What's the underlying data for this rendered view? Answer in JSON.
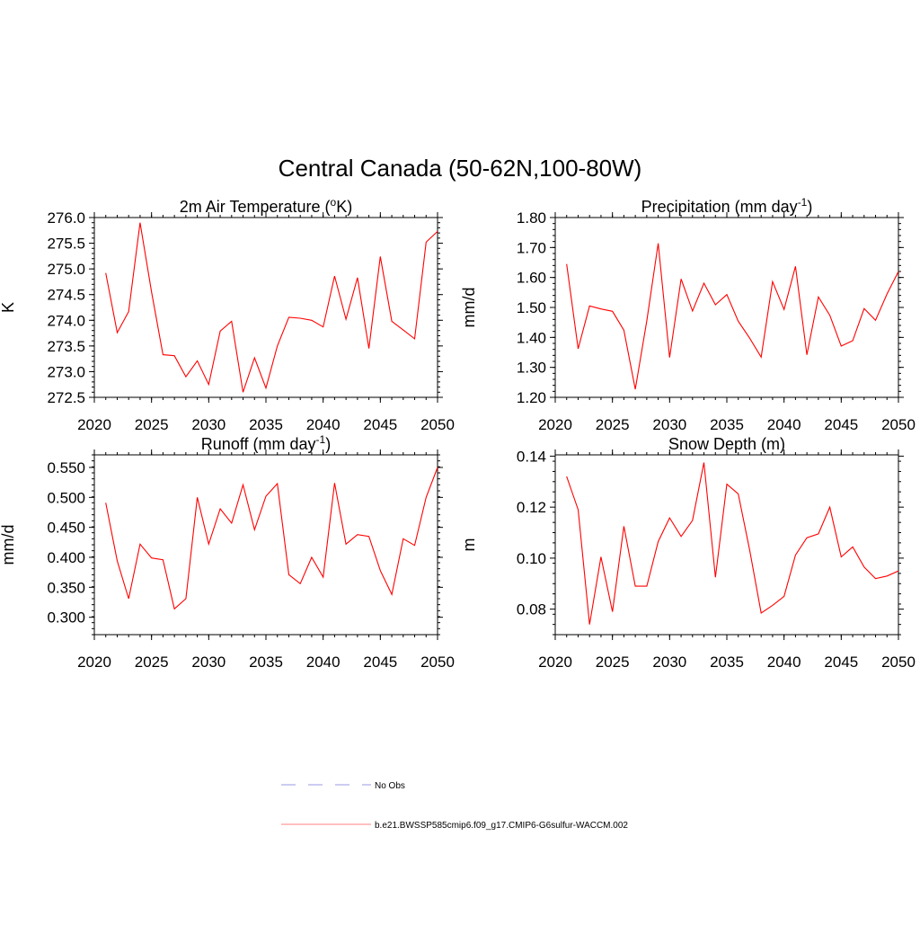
{
  "page_title": "Central Canada (50-62N,100-80W)",
  "legend": {
    "entries": [
      {
        "label": "No Obs",
        "color": "#9a9ae6",
        "dash": true
      },
      {
        "label": "b.e21.BWSSP585cmip6.f09_g17.CMIP6-G6sulfur-WACCM.002",
        "color": "#ff8080",
        "dash": false
      }
    ]
  },
  "chart_data": [
    {
      "type": "line",
      "title": "2m Air Temperature (",
      "title_sup": "o",
      "title_after": "K)",
      "ylabel": "K",
      "xlim": [
        2020,
        2050
      ],
      "ylim": [
        272.5,
        276.0
      ],
      "xticks": [
        2020,
        2025,
        2030,
        2035,
        2040,
        2045,
        2050
      ],
      "yticks": [
        "272.5",
        "273.0",
        "273.5",
        "274.0",
        "274.5",
        "275.0",
        "275.5",
        "276.0"
      ],
      "ytick_values": [
        272.5,
        273.0,
        273.5,
        274.0,
        274.5,
        275.0,
        275.5,
        276.0
      ],
      "color": "#ff0000",
      "x": [
        2021,
        2022,
        2023,
        2024,
        2025,
        2026,
        2027,
        2028,
        2029,
        2030,
        2031,
        2032,
        2033,
        2034,
        2035,
        2036,
        2037,
        2038,
        2039,
        2040,
        2041,
        2042,
        2043,
        2044,
        2045,
        2046,
        2047,
        2048,
        2049,
        2050
      ],
      "y": [
        274.92,
        273.76,
        274.17,
        275.9,
        274.55,
        273.33,
        273.31,
        272.9,
        273.21,
        272.75,
        273.79,
        273.98,
        272.6,
        273.27,
        272.68,
        273.5,
        274.06,
        274.04,
        274.0,
        273.87,
        274.86,
        274.02,
        274.83,
        273.45,
        275.24,
        273.98,
        273.81,
        273.64,
        275.52,
        275.73
      ]
    },
    {
      "type": "line",
      "title": "Precipitation (mm day",
      "title_sup": "-1",
      "title_after": ")",
      "ylabel": "mm/d",
      "xlim": [
        2020,
        2050
      ],
      "ylim": [
        1.2,
        1.8
      ],
      "xticks": [
        2020,
        2025,
        2030,
        2035,
        2040,
        2045,
        2050
      ],
      "yticks": [
        "1.20",
        "1.30",
        "1.40",
        "1.50",
        "1.60",
        "1.70",
        "1.80"
      ],
      "ytick_values": [
        1.2,
        1.3,
        1.4,
        1.5,
        1.6,
        1.7,
        1.8
      ],
      "color": "#ff0000",
      "x": [
        2021,
        2022,
        2023,
        2024,
        2025,
        2026,
        2027,
        2028,
        2029,
        2030,
        2031,
        2032,
        2033,
        2034,
        2035,
        2036,
        2037,
        2038,
        2039,
        2040,
        2041,
        2042,
        2043,
        2044,
        2045,
        2046,
        2047,
        2048,
        2049,
        2050
      ],
      "y": [
        1.645,
        1.362,
        1.505,
        1.495,
        1.487,
        1.424,
        1.227,
        1.455,
        1.714,
        1.333,
        1.595,
        1.488,
        1.581,
        1.509,
        1.543,
        1.454,
        1.397,
        1.334,
        1.586,
        1.493,
        1.637,
        1.342,
        1.535,
        1.474,
        1.371,
        1.389,
        1.496,
        1.457,
        1.545,
        1.62
      ]
    },
    {
      "type": "line",
      "title": "Runoff (mm day",
      "title_sup": "-1",
      "title_after": ")",
      "ylabel": "mm/d",
      "xlim": [
        2020,
        2050
      ],
      "ylim": [
        0.271,
        0.571
      ],
      "xticks": [
        2020,
        2025,
        2030,
        2035,
        2040,
        2045,
        2050
      ],
      "yticks": [
        "0.300",
        "0.350",
        "0.400",
        "0.450",
        "0.500",
        "0.550"
      ],
      "ytick_values": [
        0.3,
        0.35,
        0.4,
        0.45,
        0.5,
        0.55
      ],
      "color": "#ff0000",
      "x": [
        2021,
        2022,
        2023,
        2024,
        2025,
        2026,
        2027,
        2028,
        2029,
        2030,
        2031,
        2032,
        2033,
        2034,
        2035,
        2036,
        2037,
        2038,
        2039,
        2040,
        2041,
        2042,
        2043,
        2044,
        2045,
        2046,
        2047,
        2048,
        2049,
        2050
      ],
      "y": [
        0.491,
        0.394,
        0.331,
        0.422,
        0.399,
        0.396,
        0.314,
        0.331,
        0.5,
        0.422,
        0.481,
        0.457,
        0.521,
        0.446,
        0.502,
        0.523,
        0.371,
        0.356,
        0.4,
        0.367,
        0.524,
        0.422,
        0.438,
        0.435,
        0.378,
        0.338,
        0.431,
        0.42,
        0.5,
        0.55
      ]
    },
    {
      "type": "line",
      "title": "Snow Depth (m)",
      "title_sup": "",
      "title_after": "",
      "ylabel": "m",
      "xlim": [
        2020,
        2050
      ],
      "ylim": [
        0.07,
        0.1405
      ],
      "xticks": [
        2020,
        2025,
        2030,
        2035,
        2040,
        2045,
        2050
      ],
      "yticks": [
        "0.08",
        "0.10",
        "0.12",
        "0.14"
      ],
      "ytick_values": [
        0.08,
        0.1,
        0.12,
        0.14
      ],
      "color": "#ff0000",
      "x": [
        2021,
        2022,
        2023,
        2024,
        2025,
        2026,
        2027,
        2028,
        2029,
        2030,
        2031,
        2032,
        2033,
        2034,
        2035,
        2036,
        2037,
        2038,
        2039,
        2040,
        2041,
        2042,
        2043,
        2044,
        2045,
        2046,
        2047,
        2048,
        2049,
        2050
      ],
      "y": [
        0.132,
        0.119,
        0.074,
        0.1005,
        0.079,
        0.1125,
        0.089,
        0.089,
        0.1065,
        0.1158,
        0.1085,
        0.1148,
        0.1375,
        0.0925,
        0.129,
        0.1252,
        0.103,
        0.0785,
        0.0815,
        0.085,
        0.1012,
        0.108,
        0.1095,
        0.12,
        0.1005,
        0.1044,
        0.0965,
        0.092,
        0.093,
        0.095
      ]
    }
  ]
}
